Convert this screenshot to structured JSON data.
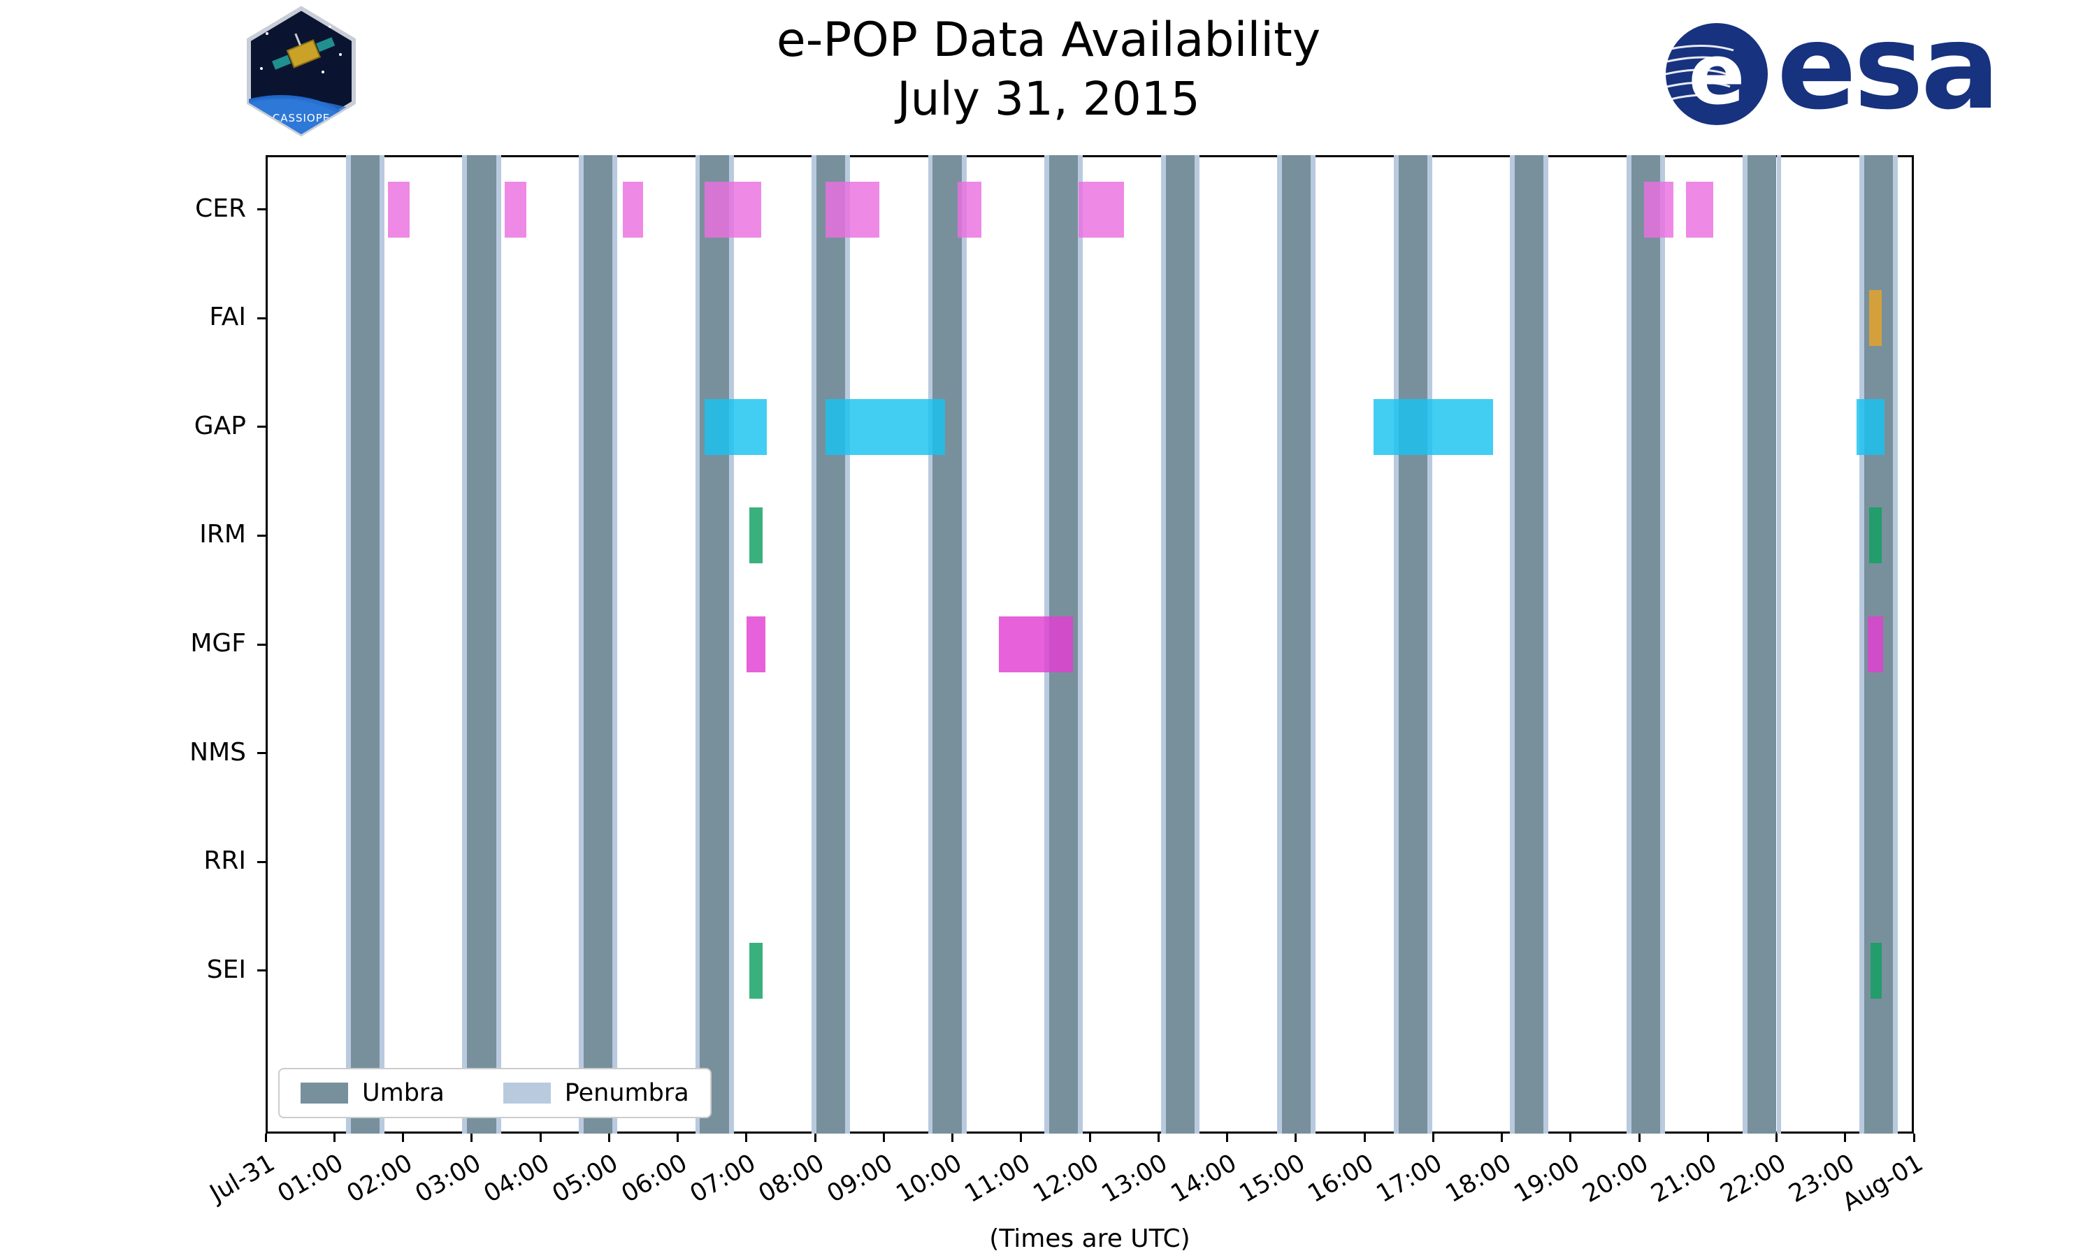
{
  "header": {
    "title": "e-POP Data Availability",
    "subtitle": "July 31, 2015"
  },
  "logos": {
    "cassiope_label": "CASSIOPE",
    "esa_label": "esa",
    "esa_e": "e"
  },
  "chart_data": {
    "type": "gantt-availability",
    "title": "e-POP Data Availability",
    "subtitle": "July 31, 2015",
    "xlabel": "(Times are UTC)",
    "x_range_hours": [
      0,
      24
    ],
    "x_tick_labels": [
      "Jul-31",
      "01:00",
      "02:00",
      "03:00",
      "04:00",
      "05:00",
      "06:00",
      "07:00",
      "08:00",
      "09:00",
      "10:00",
      "11:00",
      "12:00",
      "13:00",
      "14:00",
      "15:00",
      "16:00",
      "17:00",
      "18:00",
      "19:00",
      "20:00",
      "21:00",
      "22:00",
      "23:00",
      "Aug-01"
    ],
    "rows": [
      "CER",
      "FAI",
      "GAP",
      "IRM",
      "MGF",
      "NMS",
      "RRI",
      "SEI"
    ],
    "umbra": {
      "label": "Umbra",
      "color": "#78909c",
      "width_hours": 0.42,
      "centers_hours": [
        1.45,
        3.145,
        4.84,
        6.535,
        8.23,
        9.925,
        11.62,
        13.315,
        15.01,
        16.705,
        18.4,
        20.095,
        21.79,
        23.485
      ]
    },
    "penumbra": {
      "label": "Penumbra",
      "color": "#b9cadf",
      "width_hours": 0.07
    },
    "series": [
      {
        "row": "CER",
        "color": "#ea6fe0",
        "intervals": [
          [
            1.78,
            2.1
          ],
          [
            3.48,
            3.8
          ],
          [
            5.2,
            5.5
          ],
          [
            6.39,
            7.22
          ],
          [
            8.15,
            8.94
          ],
          [
            10.08,
            10.42
          ],
          [
            11.84,
            12.5
          ],
          [
            20.07,
            20.5
          ],
          [
            20.68,
            21.08
          ]
        ]
      },
      {
        "row": "FAI",
        "color": "#e8a426",
        "intervals": [
          [
            23.35,
            23.53
          ]
        ]
      },
      {
        "row": "GAP",
        "color": "#18c2f0",
        "intervals": [
          [
            6.39,
            7.3
          ],
          [
            8.15,
            9.89
          ],
          [
            16.13,
            17.87
          ],
          [
            23.17,
            23.57
          ]
        ]
      },
      {
        "row": "IRM",
        "color": "#0fa060",
        "intervals": [
          [
            7.04,
            7.24
          ],
          [
            23.35,
            23.53
          ]
        ]
      },
      {
        "row": "MGF",
        "color": "#e23ed2",
        "intervals": [
          [
            7.0,
            7.28
          ],
          [
            10.68,
            11.76
          ],
          [
            23.33,
            23.55
          ]
        ]
      },
      {
        "row": "NMS",
        "color": "#888888",
        "intervals": []
      },
      {
        "row": "RRI",
        "color": "#888888",
        "intervals": []
      },
      {
        "row": "SEI",
        "color": "#0fa060",
        "intervals": [
          [
            7.04,
            7.24
          ],
          [
            23.37,
            23.53
          ]
        ]
      }
    ],
    "legend": [
      {
        "label": "Umbra",
        "color": "#78909c"
      },
      {
        "label": "Penumbra",
        "color": "#b9cadf"
      }
    ],
    "layout": {
      "grid": false,
      "legend_position": "lower-left-inside"
    }
  }
}
